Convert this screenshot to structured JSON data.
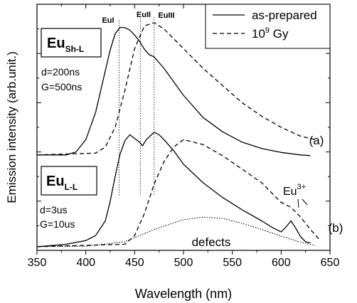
{
  "chart_data": {
    "type": "line",
    "xlabel": "Wavelength (nm)",
    "ylabel": "Emission intensity (arb.unit.)",
    "xlim": [
      350,
      650
    ],
    "ylim": [
      0,
      1
    ],
    "x_ticks": [
      "350",
      "400",
      "450",
      "500",
      "550",
      "600",
      "650"
    ],
    "grid": false,
    "legend": {
      "position": "top-right",
      "entries": [
        {
          "label": "as-prepared",
          "style": "solid"
        },
        {
          "label_base": "10",
          "label_sup": "9",
          "label_suffix": " Gy",
          "style": "dashed"
        }
      ]
    },
    "band_markers": [
      {
        "label": "EuI",
        "x": 434
      },
      {
        "label": "EuII",
        "x": 456
      },
      {
        "label": "EuIII",
        "x": 470
      }
    ],
    "panels": [
      {
        "name": "(a)",
        "label_main": "Eu",
        "label_sub": "Sh-L",
        "params": [
          "d=200ns",
          "G=500ns"
        ]
      },
      {
        "name": "(b)",
        "label_main": "Eu",
        "label_sub": "L-L",
        "params": [
          "d=3us",
          "G=10us"
        ]
      }
    ],
    "annotations": [
      {
        "text_base": "Eu",
        "text_sup": "3+"
      },
      {
        "text": "defects"
      }
    ],
    "series": [
      {
        "legend_ref": "as-prepared",
        "panel": "(a)",
        "style": "solid",
        "x": [
          350,
          380,
          390,
          400,
          410,
          420,
          425,
          430,
          435,
          440,
          445,
          450,
          455,
          460,
          465,
          470,
          480,
          500,
          520,
          540,
          560,
          580,
          600,
          620,
          630
        ],
        "y": [
          0.388,
          0.388,
          0.4,
          0.45,
          0.56,
          0.73,
          0.815,
          0.88,
          0.906,
          0.905,
          0.895,
          0.875,
          0.85,
          0.817,
          0.795,
          0.786,
          0.74,
          0.63,
          0.54,
          0.482,
          0.44,
          0.414,
          0.398,
          0.388,
          0.385
        ]
      },
      {
        "legend_ref": "10^9 Gy",
        "panel": "(a)",
        "style": "dashed",
        "x": [
          350,
          410,
          420,
          430,
          440,
          450,
          460,
          470,
          480,
          500,
          520,
          540,
          560,
          580,
          600,
          620,
          635
        ],
        "y": [
          0.388,
          0.395,
          0.42,
          0.5,
          0.65,
          0.82,
          0.912,
          0.925,
          0.9,
          0.82,
          0.74,
          0.67,
          0.6,
          0.545,
          0.5,
          0.464,
          0.45
        ]
      },
      {
        "legend_ref": "as-prepared",
        "panel": "(b)",
        "style": "solid",
        "x": [
          350,
          360,
          380,
          400,
          410,
          420,
          425,
          430,
          435,
          440,
          445,
          450,
          455,
          458,
          462,
          466,
          470,
          475,
          480,
          490,
          500,
          520,
          540,
          560,
          580,
          590,
          600,
          605,
          610,
          615,
          620,
          625,
          630
        ],
        "y": [
          0.015,
          0.018,
          0.025,
          0.04,
          0.06,
          0.12,
          0.2,
          0.3,
          0.39,
          0.445,
          0.47,
          0.455,
          0.44,
          0.425,
          0.45,
          0.465,
          0.48,
          0.47,
          0.45,
          0.405,
          0.35,
          0.275,
          0.215,
          0.165,
          0.12,
          0.095,
          0.075,
          0.095,
          0.12,
          0.09,
          0.055,
          0.035,
          0.03
        ]
      },
      {
        "legend_ref": "10^9 Gy",
        "panel": "(b)",
        "style": "dashed",
        "x": [
          350,
          440,
          450,
          460,
          470,
          480,
          490,
          500,
          510,
          520,
          540,
          560,
          580,
          600,
          610,
          620,
          630,
          640
        ],
        "y": [
          0.015,
          0.025,
          0.06,
          0.15,
          0.27,
          0.36,
          0.42,
          0.45,
          0.44,
          0.43,
          0.385,
          0.33,
          0.275,
          0.195,
          0.175,
          0.135,
          0.085,
          0.04
        ]
      },
      {
        "panel": "(b)",
        "style": "dotted",
        "annotation": "defects",
        "x": [
          350,
          400,
          440,
          470,
          500,
          520,
          540,
          560,
          580,
          600,
          620,
          635
        ],
        "y": [
          0.015,
          0.017,
          0.035,
          0.085,
          0.125,
          0.135,
          0.13,
          0.11,
          0.085,
          0.058,
          0.033,
          0.02
        ]
      }
    ]
  }
}
